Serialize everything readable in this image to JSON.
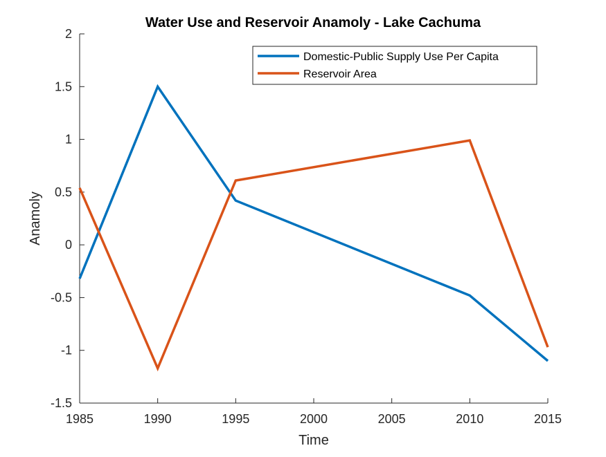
{
  "chart_data": {
    "type": "line",
    "title": "Water Use and Reservoir Anamoly - Lake Cachuma",
    "xlabel": "Time",
    "ylabel": "Anamoly",
    "xlim": [
      1985,
      2015
    ],
    "ylim": [
      -1.5,
      2
    ],
    "xticks": [
      1985,
      1990,
      1995,
      2000,
      2005,
      2010,
      2015
    ],
    "yticks": [
      -1.5,
      -1,
      -0.5,
      0,
      0.5,
      1,
      1.5,
      2
    ],
    "xtick_labels": [
      "1985",
      "1990",
      "1995",
      "2000",
      "2005",
      "2010",
      "2015"
    ],
    "ytick_labels": [
      "-1.5",
      "-1",
      "-0.5",
      "0",
      "0.5",
      "1",
      "1.5",
      "2"
    ],
    "grid": false,
    "legend_position": "top-right",
    "series": [
      {
        "name": "Domestic-Public Supply Use Per Capita",
        "color": "#0072BD",
        "x": [
          1985,
          1990,
          1995,
          2010,
          2015
        ],
        "y": [
          -0.32,
          1.5,
          0.42,
          -0.48,
          -1.1
        ]
      },
      {
        "name": "Reservoir Area",
        "color": "#D95319",
        "x": [
          1985,
          1990,
          1995,
          2010,
          2015
        ],
        "y": [
          0.54,
          -1.17,
          0.61,
          0.99,
          -0.97
        ]
      }
    ]
  }
}
